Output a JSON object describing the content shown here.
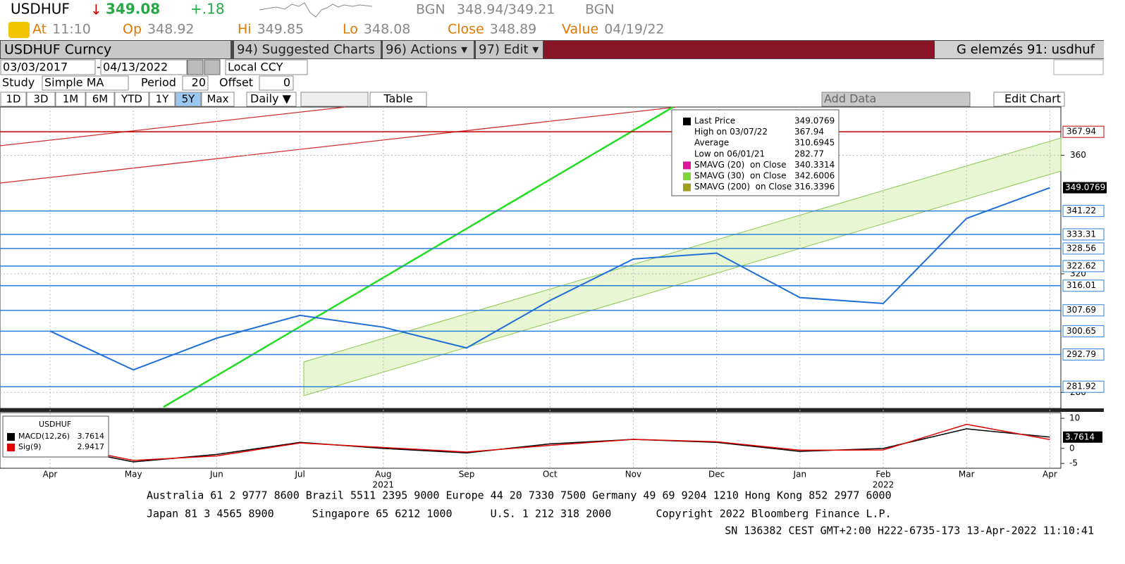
{
  "header": {
    "ticker": "USDHUF",
    "arrow": "↓",
    "last": "349.08",
    "change": "+.18",
    "bid_ccy": "BGN",
    "bid_ask": "348.94/349.21",
    "ask_ccy": "BGN",
    "fields": [
      {
        "label": "At",
        "value": "11:10"
      },
      {
        "label": "Op",
        "value": "348.92"
      },
      {
        "label": "Hi",
        "value": "349.85"
      },
      {
        "label": "Lo",
        "value": "348.08"
      },
      {
        "label": "Close",
        "value": "348.89"
      },
      {
        "label": "Value",
        "value": "04/19/22"
      }
    ]
  },
  "toolbar": {
    "security": "USDHUF Curncy",
    "menus": [
      "94) Suggested Charts",
      "96) Actions ▾",
      "97) Edit ▾"
    ],
    "page": "G elemzés 91: usdhuf",
    "start": "03/03/2017",
    "end": "04/13/2022",
    "currency": "Local CCY",
    "study_label": "Study",
    "study": "Simple MA",
    "period_label": "Period",
    "period": "20",
    "offset_label": "Offset",
    "offset": "0",
    "ranges": [
      "1D",
      "3D",
      "1M",
      "6M",
      "YTD",
      "1Y",
      "5Y",
      "Max"
    ],
    "active_range": "5Y",
    "frequency": "Daily ▼",
    "table": "Table",
    "add_data": "Add Data",
    "edit_chart": "Edit Chart"
  },
  "chart_data": [
    {
      "type": "line",
      "categories": [
        "Apr",
        "May",
        "Jun",
        "Jul",
        "Aug",
        "Sep",
        "Oct",
        "Nov",
        "Dec",
        "Jan",
        "Feb",
        "Mar",
        "Apr"
      ],
      "years": [
        {
          "label": "2021",
          "at": 4
        },
        {
          "label": "2022",
          "at": 10
        }
      ],
      "series": [
        {
          "name": "Last Price",
          "color": "#1f6fd6",
          "values": [
            300.7,
            287.6,
            298.3,
            306,
            302,
            295,
            311,
            325,
            327,
            312,
            310,
            338.7,
            349.0769
          ]
        }
      ],
      "ylim": [
        274.6,
        376.3
      ],
      "yticks": [
        280,
        320,
        360
      ],
      "grid": true,
      "levels": [
        {
          "value": 367.94,
          "color": "#c00000"
        },
        {
          "value": 341.22,
          "color": "#2e7fd9"
        },
        {
          "value": 333.31,
          "color": "#2e7fd9"
        },
        {
          "value": 328.56,
          "color": "#2e7fd9"
        },
        {
          "value": 322.62,
          "color": "#2e7fd9"
        },
        {
          "value": 316.01,
          "color": "#2e7fd9"
        },
        {
          "value": 307.69,
          "color": "#2e7fd9"
        },
        {
          "value": 300.65,
          "color": "#2e7fd9"
        },
        {
          "value": 292.79,
          "color": "#2e7fd9"
        },
        {
          "value": 281.92,
          "color": "#2e7fd9"
        }
      ],
      "last_value": 349.0769,
      "legend": [
        {
          "name": "Last Price",
          "value": 349.0769,
          "color": "#000000"
        },
        {
          "name": "High on 03/07/22",
          "value": 367.94
        },
        {
          "name": "Average",
          "value": 310.6945
        },
        {
          "name": "Low on 06/01/21",
          "value": 282.77
        },
        {
          "name": "SMAVG (20)  on Close",
          "value": 340.3314,
          "color": "#e0169a"
        },
        {
          "name": "SMAVG (30)  on Close",
          "value": 342.6006,
          "color": "#7fd43a"
        },
        {
          "name": "SMAVG (200)  on Close",
          "value": 316.3396,
          "color": "#a0a020"
        }
      ]
    },
    {
      "type": "line",
      "title": "USDHUF",
      "series": [
        {
          "name": "MACD(12,26)",
          "color": "#000000",
          "values": [
            1,
            -4.5,
            -2,
            2,
            0,
            -1.5,
            1.5,
            3,
            2,
            -1,
            0,
            6.5,
            3.7614
          ],
          "last": 3.7614
        },
        {
          "name": "Sig(9)",
          "color": "#e00000",
          "values": [
            1.5,
            -4,
            -2.5,
            1.8,
            0.3,
            -1.2,
            1,
            3,
            2.2,
            -0.6,
            -0.5,
            8,
            2.9417
          ],
          "last": 2.9417
        }
      ],
      "ylim": [
        -6.6,
        11.9
      ],
      "yticks": [
        -5,
        0,
        10
      ]
    }
  ],
  "footer": {
    "lines": [
      "Australia 61 2 9777 8600 Brazil 5511 2395 9000 Europe 44 20 7330 7500 Germany 49 69 9204 1210 Hong Kong 852 2977 6000",
      "Japan 81 3 4565 8900      Singapore 65 6212 1000      U.S. 1 212 318 2000       Copyright 2022 Bloomberg Finance L.P.",
      "SN 136382 CEST GMT+2:00 H222-6735-173 13-Apr-2022 11:10:41"
    ]
  }
}
